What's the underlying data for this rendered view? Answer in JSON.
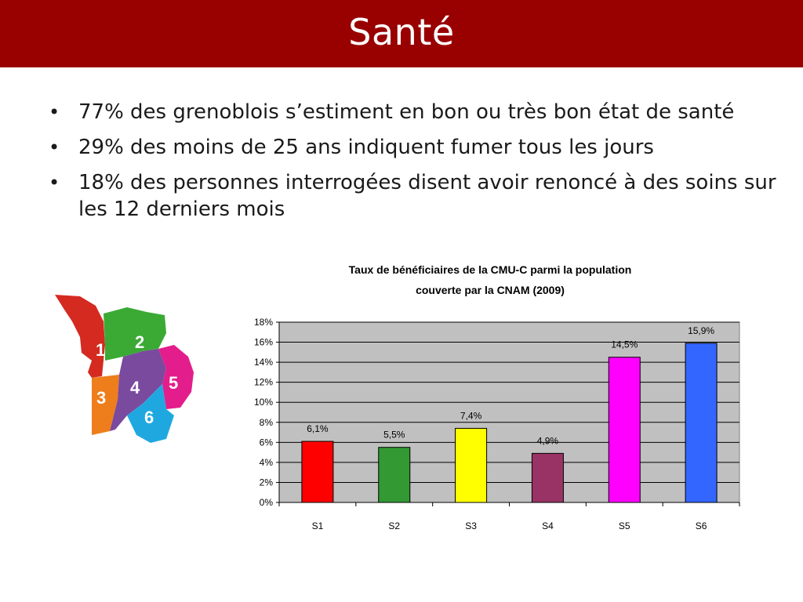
{
  "slide": {
    "title": "Santé",
    "title_bar_color": "#990000"
  },
  "bullets": [
    "77% des grenoblois s’estiment en bon ou très bon état de santé",
    "29% des moins de 25 ans indiquent fumer tous les jours",
    "18% des personnes interrogées disent avoir renoncé à des soins sur les 12 derniers mois"
  ],
  "map": {
    "sectors": [
      {
        "label": "1",
        "color": "#d42a20"
      },
      {
        "label": "2",
        "color": "#3aaa35"
      },
      {
        "label": "3",
        "color": "#ee7d1b"
      },
      {
        "label": "4",
        "color": "#7a4a9e"
      },
      {
        "label": "5",
        "color": "#e31d8c"
      },
      {
        "label": "6",
        "color": "#1fa8e0"
      }
    ]
  },
  "chart_data": {
    "type": "bar",
    "title_line1": "Taux de bénéficiaires de la CMU-C parmi la population",
    "title_line2": "couverte par la CNAM (2009)",
    "categories": [
      "S1",
      "S2",
      "S3",
      "S4",
      "S5",
      "S6"
    ],
    "values": [
      6.1,
      5.5,
      7.4,
      4.9,
      14.5,
      15.9
    ],
    "data_labels": [
      "6,1%",
      "5,5%",
      "7,4%",
      "4,9%",
      "14,5%",
      "15,9%"
    ],
    "colors": [
      "#ff0000",
      "#339933",
      "#ffff00",
      "#993366",
      "#ff00ff",
      "#3366ff"
    ],
    "ylim": [
      0,
      18
    ],
    "yticks": [
      0,
      2,
      4,
      6,
      8,
      10,
      12,
      14,
      16,
      18
    ],
    "ytick_labels": [
      "0%",
      "2%",
      "4%",
      "6%",
      "8%",
      "10%",
      "12%",
      "14%",
      "16%",
      "18%"
    ],
    "plot_background": "#c0c0c0",
    "grid": true,
    "legend": "none",
    "xlabel": "",
    "ylabel": ""
  }
}
